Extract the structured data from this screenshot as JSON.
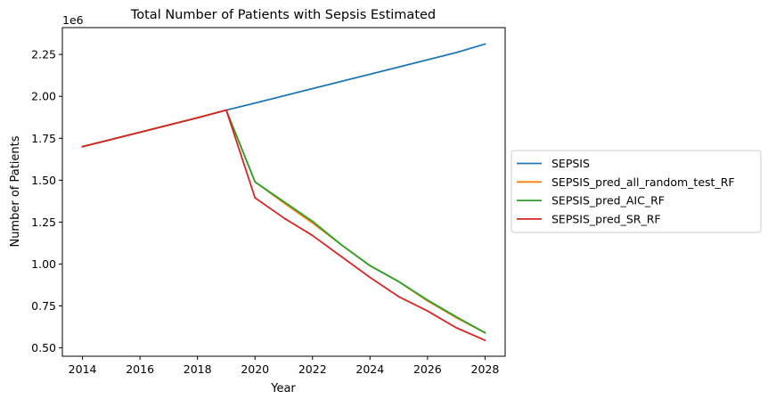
{
  "chart_data": {
    "type": "line",
    "title": "Total Number of Patients with Sepsis Estimated",
    "xlabel": "Year",
    "ylabel": "Number of Patients",
    "y_offset_label": "1e6",
    "xlim": [
      2013.3,
      2028.7
    ],
    "ylim": [
      0.45,
      2.41
    ],
    "x_ticks": [
      2014,
      2016,
      2018,
      2020,
      2022,
      2024,
      2026,
      2028
    ],
    "x_tick_labels": [
      "2014",
      "2016",
      "2018",
      "2020",
      "2022",
      "2024",
      "2026",
      "2028"
    ],
    "y_ticks": [
      0.5,
      0.75,
      1.0,
      1.25,
      1.5,
      1.75,
      2.0,
      2.25
    ],
    "y_tick_labels": [
      "0.50",
      "0.75",
      "1.00",
      "1.25",
      "1.50",
      "1.75",
      "2.00",
      "2.25"
    ],
    "grid": false,
    "legend_position": "outside-right",
    "x": [
      2014,
      2015,
      2016,
      2017,
      2018,
      2019,
      2020,
      2021,
      2022,
      2023,
      2024,
      2025,
      2026,
      2027,
      2028
    ],
    "series": [
      {
        "name": "SEPSIS",
        "color": "#1f77b4",
        "values": [
          1.7,
          1.743,
          1.786,
          1.829,
          1.872,
          1.918,
          1.96,
          2.003,
          2.046,
          2.089,
          2.132,
          2.175,
          2.218,
          2.261,
          2.312
        ]
      },
      {
        "name": "SEPSIS_pred_all_random_test_RF",
        "color": "#ff7f0e",
        "values": [
          1.7,
          1.743,
          1.786,
          1.829,
          1.872,
          1.918,
          1.49,
          1.365,
          1.245,
          1.115,
          0.99,
          0.895,
          0.78,
          0.68,
          0.59
        ]
      },
      {
        "name": "SEPSIS_pred_AIC_RF",
        "color": "#2ca02c",
        "values": [
          1.7,
          1.743,
          1.786,
          1.829,
          1.872,
          1.918,
          1.49,
          1.372,
          1.255,
          1.115,
          0.99,
          0.895,
          0.785,
          0.685,
          0.59
        ]
      },
      {
        "name": "SEPSIS_pred_SR_RF",
        "color": "#d62728",
        "values": [
          1.7,
          1.743,
          1.786,
          1.829,
          1.872,
          1.918,
          1.395,
          1.275,
          1.17,
          1.045,
          0.92,
          0.805,
          0.72,
          0.62,
          0.545
        ]
      }
    ]
  }
}
